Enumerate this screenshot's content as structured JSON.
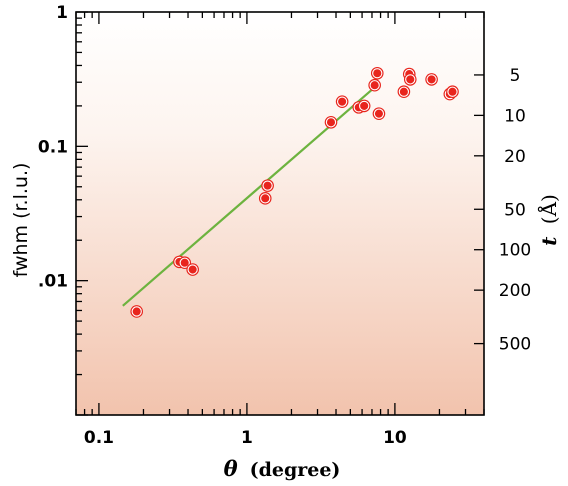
{
  "chart_data": {
    "type": "scatter",
    "x_scale": "log",
    "y_scale": "log",
    "xlim": [
      0.07,
      40
    ],
    "ylim": [
      0.001,
      1
    ],
    "xlabel_symbol": "θ",
    "xlabel_unit": "(degree)",
    "ylabel": "fwhm  (r.l.u.)",
    "y2label_symbol": "t",
    "y2label_unit": "(Å)",
    "x_ticks": [
      {
        "value": 0.1,
        "label": "0.1"
      },
      {
        "value": 1,
        "label": "1"
      },
      {
        "value": 10,
        "label": "10"
      }
    ],
    "y_ticks": [
      {
        "value": 1,
        "label": "1"
      },
      {
        "value": 0.1,
        "label": "0.1"
      },
      {
        "value": 0.01,
        "label": ".01"
      }
    ],
    "y2_ticks": [
      {
        "value": 5,
        "label": "5"
      },
      {
        "value": 10,
        "label": "10"
      },
      {
        "value": 20,
        "label": "20"
      },
      {
        "value": 50,
        "label": "50"
      },
      {
        "value": 100,
        "label": "100"
      },
      {
        "value": 200,
        "label": "200"
      },
      {
        "value": 500,
        "label": "500"
      }
    ],
    "series": [
      {
        "marker_color": "#e8251d",
        "points": [
          [
            0.18,
            0.0059
          ],
          [
            0.35,
            0.0138
          ],
          [
            0.38,
            0.0136
          ],
          [
            0.43,
            0.0121
          ],
          [
            1.33,
            0.041
          ],
          [
            1.38,
            0.051
          ],
          [
            3.7,
            0.151
          ],
          [
            4.4,
            0.215
          ],
          [
            5.7,
            0.195
          ],
          [
            6.2,
            0.2
          ],
          [
            7.3,
            0.285
          ],
          [
            7.6,
            0.35
          ],
          [
            7.8,
            0.175
          ],
          [
            11.5,
            0.255
          ],
          [
            12.5,
            0.345
          ],
          [
            12.7,
            0.315
          ],
          [
            17.7,
            0.315
          ],
          [
            23.5,
            0.245
          ],
          [
            24.5,
            0.255
          ]
        ]
      }
    ],
    "fit_line": {
      "color": "#6db33f",
      "x": [
        0.145,
        7.3
      ],
      "y": [
        0.0065,
        0.275
      ]
    },
    "background_gradient": [
      "#fdf6f2",
      "#f2c3ad"
    ]
  }
}
